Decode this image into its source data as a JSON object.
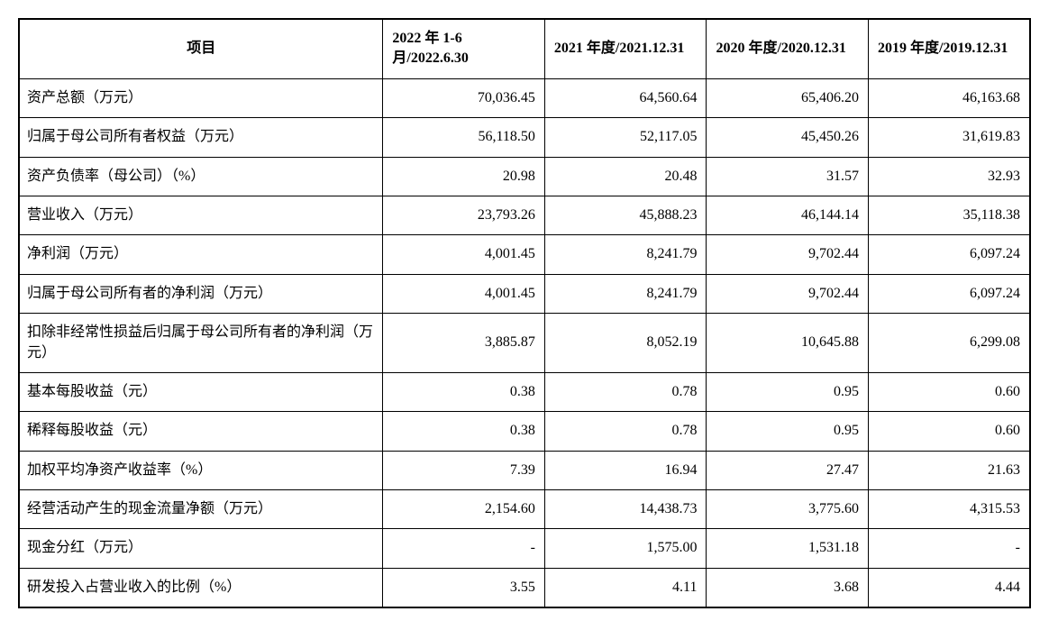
{
  "table": {
    "type": "table",
    "background_color": "#ffffff",
    "border_color": "#000000",
    "outer_border_width": 2,
    "inner_border_width": 1,
    "text_color": "#000000",
    "font_family": "SimSun",
    "header_fontsize": 16,
    "header_fontweight": "bold",
    "body_fontsize": 16,
    "cell_padding": "10px 8px",
    "column_widths_pct": [
      36,
      16,
      16,
      16,
      16
    ],
    "header_alignment": [
      "center",
      "left",
      "left",
      "left",
      "left"
    ],
    "body_alignment": [
      "left",
      "right",
      "right",
      "right",
      "right"
    ],
    "columns": [
      "项目",
      "2022 年 1-6 月/2022.6.30",
      "2021 年度/2021.12.31",
      "2020 年度/2020.12.31",
      "2019 年度/2019.12.31"
    ],
    "rows": [
      {
        "item": "资产总额（万元）",
        "values": [
          "70,036.45",
          "64,560.64",
          "65,406.20",
          "46,163.68"
        ]
      },
      {
        "item": "归属于母公司所有者权益（万元）",
        "values": [
          "56,118.50",
          "52,117.05",
          "45,450.26",
          "31,619.83"
        ]
      },
      {
        "item": "资产负债率（母公司）（%）",
        "values": [
          "20.98",
          "20.48",
          "31.57",
          "32.93"
        ]
      },
      {
        "item": "营业收入（万元）",
        "values": [
          "23,793.26",
          "45,888.23",
          "46,144.14",
          "35,118.38"
        ]
      },
      {
        "item": "净利润（万元）",
        "values": [
          "4,001.45",
          "8,241.79",
          "9,702.44",
          "6,097.24"
        ]
      },
      {
        "item": "归属于母公司所有者的净利润（万元）",
        "values": [
          "4,001.45",
          "8,241.79",
          "9,702.44",
          "6,097.24"
        ]
      },
      {
        "item": "扣除非经常性损益后归属于母公司所有者的净利润（万元）",
        "values": [
          "3,885.87",
          "8,052.19",
          "10,645.88",
          "6,299.08"
        ]
      },
      {
        "item": "基本每股收益（元）",
        "values": [
          "0.38",
          "0.78",
          "0.95",
          "0.60"
        ]
      },
      {
        "item": "稀释每股收益（元）",
        "values": [
          "0.38",
          "0.78",
          "0.95",
          "0.60"
        ]
      },
      {
        "item": "加权平均净资产收益率（%）",
        "values": [
          "7.39",
          "16.94",
          "27.47",
          "21.63"
        ]
      },
      {
        "item": "经营活动产生的现金流量净额（万元）",
        "values": [
          "2,154.60",
          "14,438.73",
          "3,775.60",
          "4,315.53"
        ]
      },
      {
        "item": "现金分红（万元）",
        "values": [
          "-",
          "1,575.00",
          "1,531.18",
          "-"
        ]
      },
      {
        "item": "研发投入占营业收入的比例（%）",
        "values": [
          "3.55",
          "4.11",
          "3.68",
          "4.44"
        ]
      }
    ]
  }
}
